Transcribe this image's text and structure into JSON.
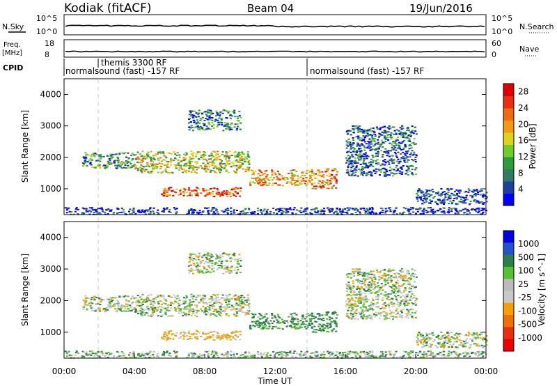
{
  "header": {
    "site": "Kodiak (fitACF)",
    "beam": "Beam 04",
    "date": "19/Jun/2016"
  },
  "strips": {
    "nsky": {
      "label": "N.Sky",
      "yticks": [
        "10^5",
        "10^0"
      ],
      "right_label": "N.Search",
      "right_yticks": [
        "10^5",
        "10^0"
      ]
    },
    "freq": {
      "label_lines": [
        "Freq.",
        "[MHz]"
      ],
      "yticks": [
        18,
        8
      ],
      "right_label": "Nave",
      "right_yticks": [
        60,
        0
      ]
    },
    "cpid": {
      "label": "CPID",
      "programs": [
        {
          "name": "normalsound (fast) -157 RF",
          "start": 0.0,
          "end": 14.0
        },
        {
          "name": "themis 3300 RF",
          "start": 2.0,
          "end": 2.0
        },
        {
          "name": "normalsound (fast) -157 RF",
          "start": 14.0,
          "end": 24.0
        }
      ]
    }
  },
  "colors": {
    "power_scale": [
      "#0000ff",
      "#1f3fa0",
      "#2e7d62",
      "#2e9c3a",
      "#6fce2a",
      "#e0d21a",
      "#f29a10",
      "#f26a10",
      "#e83010",
      "#e00000"
    ],
    "velocity_scale": [
      "#0000e0",
      "#2255cc",
      "#2e7d4a",
      "#55c030",
      "#bbbbbb",
      "#c8c8c8",
      "#f5a000",
      "#f07000",
      "#e83010",
      "#ee0000"
    ]
  },
  "chart_data": [
    {
      "type": "heatmap",
      "title": "Power",
      "xlabel": "Time UT",
      "ylabel": "Slant Range [km]",
      "xlim": [
        0,
        24
      ],
      "ylim": [
        180,
        4500
      ],
      "xticks": [
        "00:00",
        "04:00",
        "08:00",
        "12:00",
        "16:00",
        "20:00",
        "00:00"
      ],
      "yticks": [
        1000,
        2000,
        3000,
        4000
      ],
      "colorbar": {
        "label": "Power [dB]",
        "ticks": [
          4,
          8,
          12,
          16,
          20,
          24,
          28
        ],
        "range": [
          0,
          30
        ]
      },
      "echo_regions": [
        {
          "t_start": 1.0,
          "t_end": 4.0,
          "r_start": 1650,
          "r_end": 2150,
          "level": 0.3
        },
        {
          "t_start": 4.0,
          "t_end": 10.5,
          "r_start": 1500,
          "r_end": 2200,
          "level": 0.5
        },
        {
          "t_start": 5.5,
          "t_end": 10.0,
          "r_start": 750,
          "r_end": 1050,
          "level": 0.8
        },
        {
          "t_start": 7.0,
          "t_end": 10.0,
          "r_start": 2850,
          "r_end": 3500,
          "level": 0.25
        },
        {
          "t_start": 10.5,
          "t_end": 14.0,
          "r_start": 1100,
          "r_end": 1600,
          "level": 0.65
        },
        {
          "t_start": 14.0,
          "t_end": 15.5,
          "r_start": 1000,
          "r_end": 1650,
          "level": 0.7
        },
        {
          "t_start": 16.0,
          "t_end": 20.0,
          "r_start": 1400,
          "r_end": 3000,
          "level": 0.2
        },
        {
          "t_start": 20.0,
          "t_end": 24.0,
          "r_start": 500,
          "r_end": 1000,
          "level": 0.15
        },
        {
          "t_start": 0.0,
          "t_end": 24.0,
          "r_start": 180,
          "r_end": 400,
          "level": 0.1
        }
      ]
    },
    {
      "type": "heatmap",
      "title": "Velocity",
      "xlabel": "Time UT",
      "ylabel": "Slant Range [km]",
      "xlim": [
        0,
        24
      ],
      "ylim": [
        180,
        4500
      ],
      "xticks": [
        "00:00",
        "04:00",
        "08:00",
        "12:00",
        "16:00",
        "20:00",
        "00:00"
      ],
      "yticks": [
        1000,
        2000,
        3000,
        4000
      ],
      "colorbar": {
        "label": "Velocity [m s^-1]",
        "ticks": [
          "1000",
          "500",
          "100",
          "25",
          "-25",
          "-100",
          "-500",
          "-1000"
        ]
      },
      "echo_regions": [
        {
          "t_start": 1.0,
          "t_end": 4.0,
          "r_start": 1650,
          "r_end": 2150,
          "velocity": 0
        },
        {
          "t_start": 4.0,
          "t_end": 10.5,
          "r_start": 1500,
          "r_end": 2200,
          "velocity": 0
        },
        {
          "t_start": 5.5,
          "t_end": 10.0,
          "r_start": 750,
          "r_end": 1050,
          "velocity": -150
        },
        {
          "t_start": 7.0,
          "t_end": 10.0,
          "r_start": 2850,
          "r_end": 3500,
          "velocity": 0
        },
        {
          "t_start": 10.5,
          "t_end": 14.0,
          "r_start": 1100,
          "r_end": 1600,
          "velocity": 150
        },
        {
          "t_start": 14.0,
          "t_end": 15.5,
          "r_start": 1000,
          "r_end": 1650,
          "velocity": 200
        },
        {
          "t_start": 16.0,
          "t_end": 20.0,
          "r_start": 1400,
          "r_end": 3000,
          "velocity": 0
        },
        {
          "t_start": 20.0,
          "t_end": 24.0,
          "r_start": 500,
          "r_end": 1000,
          "velocity": 0
        },
        {
          "t_start": 0.0,
          "t_end": 24.0,
          "r_start": 180,
          "r_end": 400,
          "velocity": 50
        }
      ]
    }
  ]
}
